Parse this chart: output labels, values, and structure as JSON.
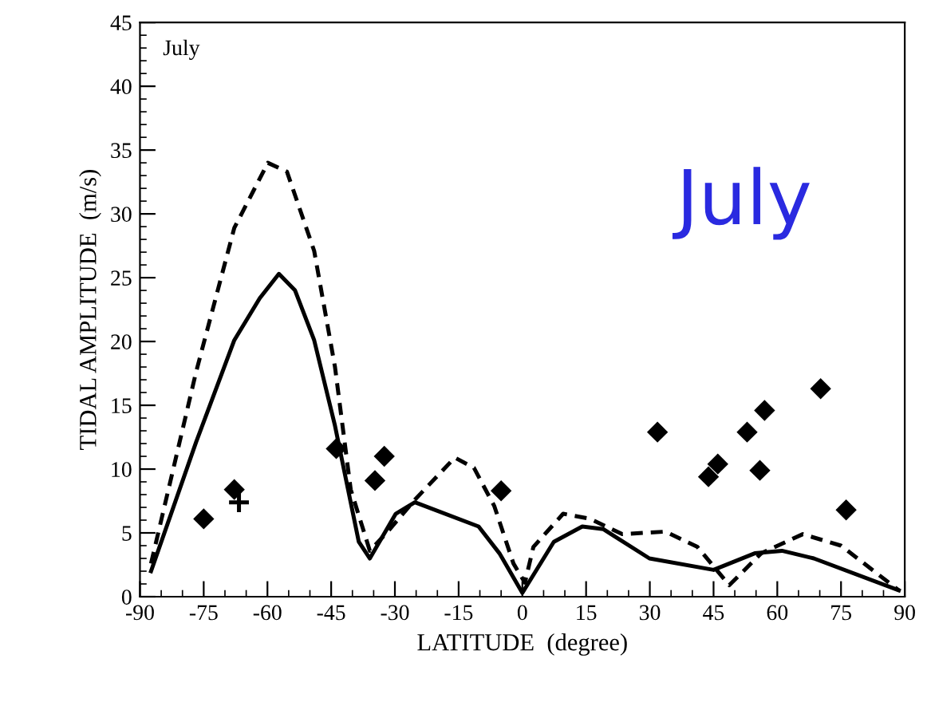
{
  "chart_data": {
    "type": "line",
    "xlabel": "LATITUDE  (degree)",
    "ylabel": "TIDAL AMPLITUDE  (m/s)",
    "xlim": [
      -90,
      90
    ],
    "xticks": [
      -90,
      -75,
      -60,
      -45,
      -30,
      -15,
      0,
      15,
      30,
      45,
      60,
      75,
      90
    ],
    "ylim": [
      0,
      45
    ],
    "yticks": [
      0,
      5,
      10,
      15,
      20,
      25,
      30,
      35,
      40,
      45
    ],
    "grid": false,
    "annotations": [
      "July",
      "July"
    ],
    "series": [
      {
        "color": "#000000",
        "line_style": "solid",
        "marker": "none",
        "x": [
          -87.4,
          -76.8,
          -67.8,
          -61.8,
          -57.3,
          -53.5,
          -49,
          -44.1,
          -38.5,
          -35.9,
          -29.8,
          -25.3,
          -10.3,
          -5.4,
          0,
          7.4,
          14.1,
          19,
          29.9,
          45,
          54.7,
          61.1,
          68.6,
          88.6
        ],
        "values": [
          2,
          12.1,
          20.1,
          23.4,
          25.3,
          24,
          20.1,
          13.4,
          4.3,
          3,
          6.5,
          7.4,
          5.5,
          3.4,
          0.3,
          4.3,
          5.5,
          5.3,
          3,
          2.1,
          3.4,
          3.6,
          3,
          0.5
        ]
      },
      {
        "color": "#000000",
        "line_style": "dashed",
        "marker": "none",
        "x": [
          -87.4,
          -76.8,
          -67.8,
          -59.9,
          -55.4,
          -49,
          -44.1,
          -40.4,
          -35.9,
          -31.7,
          -25.3,
          -15.9,
          -11.4,
          -6.6,
          -2.1,
          0.6,
          2.6,
          9.6,
          16,
          23.5,
          33.7,
          41.2,
          48.7,
          56.2,
          66,
          75,
          88.6
        ],
        "values": [
          2.6,
          17.6,
          28.9,
          34,
          33.3,
          27.1,
          18,
          8.4,
          3.6,
          5.1,
          7.6,
          10.9,
          10.1,
          7.1,
          2.6,
          1.1,
          3.9,
          6.5,
          6.1,
          4.9,
          5.1,
          3.9,
          0.9,
          3.4,
          4.9,
          4,
          0.5
        ]
      },
      {
        "type": "scatter",
        "color": "#000000",
        "marker": "diamond",
        "x": [
          -75,
          -67.8,
          -43.8,
          -34.7,
          -32.5,
          -5,
          31.8,
          43.8,
          46,
          52.9,
          57,
          55.9,
          70.2,
          76.2
        ],
        "values": [
          6.1,
          8.4,
          11.6,
          9.1,
          11,
          8.3,
          12.9,
          9.4,
          10.4,
          12.9,
          14.6,
          9.9,
          16.3,
          6.8
        ]
      },
      {
        "type": "scatter",
        "color": "#000000",
        "marker": "cross",
        "x": [
          -66.7
        ],
        "values": [
          7.4
        ]
      }
    ]
  }
}
